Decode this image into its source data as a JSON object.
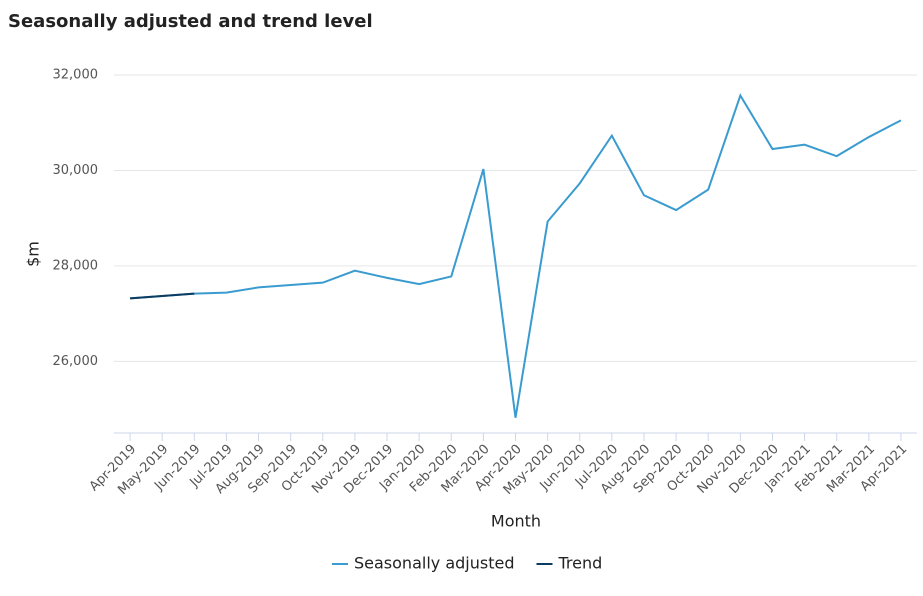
{
  "chart_data": {
    "type": "line",
    "title": "Seasonally adjusted and trend level",
    "x_label": "Month",
    "y_label": "$m",
    "categories": [
      "Apr-2019",
      "May-2019",
      "Jun-2019",
      "Jul-2019",
      "Aug-2019",
      "Sep-2019",
      "Oct-2019",
      "Nov-2019",
      "Dec-2019",
      "Jan-2020",
      "Feb-2020",
      "Mar-2020",
      "Apr-2020",
      "May-2020",
      "Jun-2020",
      "Jul-2020",
      "Aug-2020",
      "Sep-2020",
      "Oct-2020",
      "Nov-2020",
      "Dec-2020",
      "Jan-2021",
      "Feb-2021",
      "Mar-2021",
      "Apr-2021"
    ],
    "series": [
      {
        "name": "Seasonally adjusted",
        "color": "#3a9bd0",
        "values": [
          27320,
          27370,
          27420,
          27440,
          27550,
          27600,
          27650,
          27900,
          27750,
          27620,
          27780,
          30030,
          24820,
          28930,
          29730,
          30730,
          29480,
          29170,
          29600,
          31570,
          30450,
          30540,
          30300,
          30700,
          31050
        ]
      },
      {
        "name": "Trend",
        "color": "#0c3c60",
        "values": [
          27320,
          27370,
          27420,
          null,
          null,
          null,
          null,
          null,
          null,
          null,
          null,
          null,
          null,
          null,
          null,
          null,
          null,
          null,
          null,
          null,
          null,
          null,
          null,
          null,
          null
        ]
      }
    ],
    "ylim": [
      24500,
      32000
    ],
    "yticks": [
      {
        "value": 26000,
        "label": "26,000"
      },
      {
        "value": 28000,
        "label": "28,000"
      },
      {
        "value": 30000,
        "label": "30,000"
      },
      {
        "value": 32000,
        "label": "32,000"
      }
    ],
    "grid": true,
    "legend": "bottom"
  }
}
